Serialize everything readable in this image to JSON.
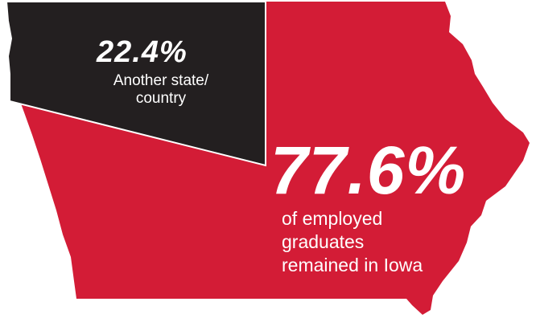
{
  "chart_data": {
    "type": "pie",
    "categories": [
      "Another state/ country",
      "Remained in Iowa"
    ],
    "values": [
      22.4,
      77.6
    ],
    "slices": [
      {
        "value_label": "22.4%",
        "caption": "Another state/ country",
        "caption_lines": [
          "Another state/",
          "country"
        ],
        "color": "#231f20"
      },
      {
        "value_label": "77.6%",
        "caption": "of employed graduates remained in Iowa",
        "caption_lines": [
          "of employed",
          "graduates",
          "remained in Iowa"
        ],
        "color": "#d31c36"
      }
    ]
  }
}
